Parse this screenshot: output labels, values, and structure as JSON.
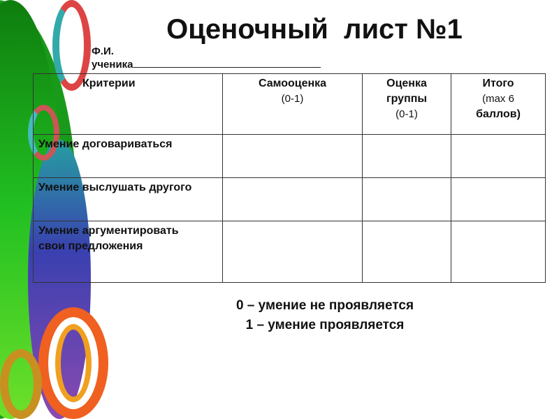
{
  "title": "Оценочный  лист №1",
  "student": {
    "label_line1": "Ф.И.",
    "label_line2": "ученика"
  },
  "table": {
    "headers": [
      {
        "lines": [
          "Критерии"
        ]
      },
      {
        "lines": [
          "Самооценка",
          "(0-1)"
        ]
      },
      {
        "lines": [
          "Оценка",
          "группы",
          "(0-1)"
        ]
      },
      {
        "lines": [
          "Итого",
          "(max 6",
          "баллов)"
        ]
      }
    ],
    "rows": [
      {
        "criterion": "Умение договариваться",
        "self": "",
        "group": "",
        "total": ""
      },
      {
        "criterion": "Умение выслушать другого",
        "self": "",
        "group": "",
        "total": ""
      },
      {
        "criterion": "Умение аргументировать свои предложения",
        "self": "",
        "group": "",
        "total": ""
      }
    ]
  },
  "legend": [
    "0 – умение не проявляется",
    "1 – умение проявляется"
  ]
}
